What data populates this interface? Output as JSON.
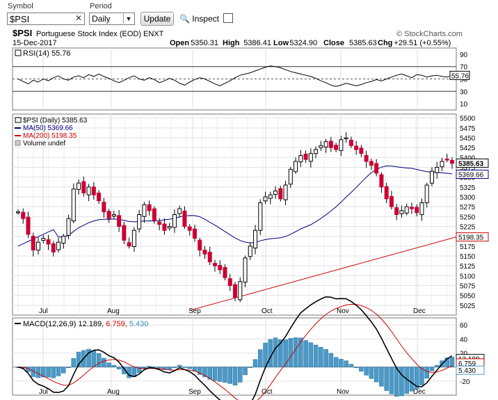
{
  "toolbar": {
    "symbol_label": "Symbol",
    "symbol_value": "$PSI",
    "period_label": "Period",
    "period_value": "Daily",
    "update_label": "Update",
    "inspect_label": "Inspect"
  },
  "header": {
    "symbol": "$PSI",
    "name": "Portuguese Stock Index (EOD)",
    "exchange": "ENXT",
    "watermark": "© StockCharts.com",
    "date": "15-Dec-2017",
    "open_label": "Open",
    "open": "5350.31",
    "high_label": "High",
    "high": "5386.41",
    "low_label": "Low",
    "low": "5324.90",
    "close_label": "Close",
    "close": "5385.63",
    "chg_label": "Chg",
    "chg": "+29.51 (+0.55%)"
  },
  "chart_data": [
    {
      "type": "line",
      "panel": "RSI",
      "title": "RSI(14) 55.76",
      "ylim": [
        0,
        100
      ],
      "yticks": [
        90,
        70,
        50,
        30,
        10
      ],
      "reference_lines": [
        70,
        30
      ],
      "last_value_label": "55.76",
      "values": [
        50,
        46,
        42,
        48,
        45,
        50,
        47,
        52,
        55,
        50,
        48,
        53,
        55,
        52,
        57,
        54,
        58,
        54,
        51,
        47,
        44,
        48,
        52,
        55,
        50,
        48,
        52,
        49,
        44,
        47,
        51,
        48,
        43,
        40,
        45,
        49,
        52,
        50,
        46,
        42,
        39,
        43,
        47,
        52,
        56,
        58,
        60,
        63,
        66,
        69,
        71,
        70,
        68,
        65,
        62,
        60,
        58,
        56,
        54,
        51,
        47,
        44,
        40,
        38,
        40,
        43,
        41,
        39,
        41,
        44,
        46,
        49,
        47,
        50,
        53,
        56,
        58,
        55,
        52,
        57,
        56,
        53,
        55,
        56,
        54,
        53,
        56
      ]
    },
    {
      "type": "candlestick",
      "panel": "Price",
      "title": "$PSI (Daily) 5385.63",
      "legend": [
        "$PSI (Daily) 5385.63",
        "MA(50) 5369.66",
        "MA(200) 5198.35",
        "Volume undef"
      ],
      "legend_colors": [
        "#000000",
        "#000080",
        "#cc0000",
        "#000000"
      ],
      "ylim": [
        5000,
        5510
      ],
      "yticks": [
        5500,
        5475,
        5450,
        5425,
        5400,
        5375,
        5350,
        5325,
        5300,
        5275,
        5250,
        5225,
        5200,
        5175,
        5150,
        5125,
        5100,
        5075,
        5050,
        5025
      ],
      "last_labels": {
        "close": "5385.63",
        "ma50": "5369.66",
        "ma200": "5198.35"
      },
      "months": [
        "Jul",
        "Aug",
        "Sep",
        "Oct",
        "Nov",
        "Dec"
      ],
      "closes": [
        5262,
        5245,
        5205,
        5165,
        5185,
        5195,
        5180,
        5160,
        5185,
        5200,
        5245,
        5320,
        5335,
        5310,
        5325,
        5305,
        5290,
        5262,
        5245,
        5255,
        5225,
        5190,
        5175,
        5215,
        5255,
        5280,
        5265,
        5240,
        5230,
        5215,
        5225,
        5255,
        5270,
        5225,
        5215,
        5195,
        5165,
        5155,
        5135,
        5125,
        5115,
        5095,
        5075,
        5045,
        5085,
        5145,
        5175,
        5215,
        5285,
        5300,
        5305,
        5315,
        5295,
        5330,
        5370,
        5390,
        5405,
        5395,
        5410,
        5420,
        5430,
        5440,
        5425,
        5420,
        5445,
        5450,
        5430,
        5420,
        5410,
        5390,
        5380,
        5360,
        5325,
        5295,
        5275,
        5255,
        5265,
        5275,
        5270,
        5260,
        5285,
        5330,
        5365,
        5375,
        5390,
        5395,
        5385
      ]
    },
    {
      "type": "line",
      "panel": "MACD",
      "title": "MACD(12,26,9) 12.189, 6.759, 5.430",
      "ylim": [
        -40,
        70
      ],
      "yticks": [
        60,
        40,
        20,
        0,
        -20
      ],
      "last_values": {
        "macd": "12.189",
        "signal": "6.759",
        "histogram": "5.430"
      },
      "series_colors": {
        "macd": "#000000",
        "signal": "#cc0000",
        "histogram": "#4a9ac8"
      }
    }
  ]
}
